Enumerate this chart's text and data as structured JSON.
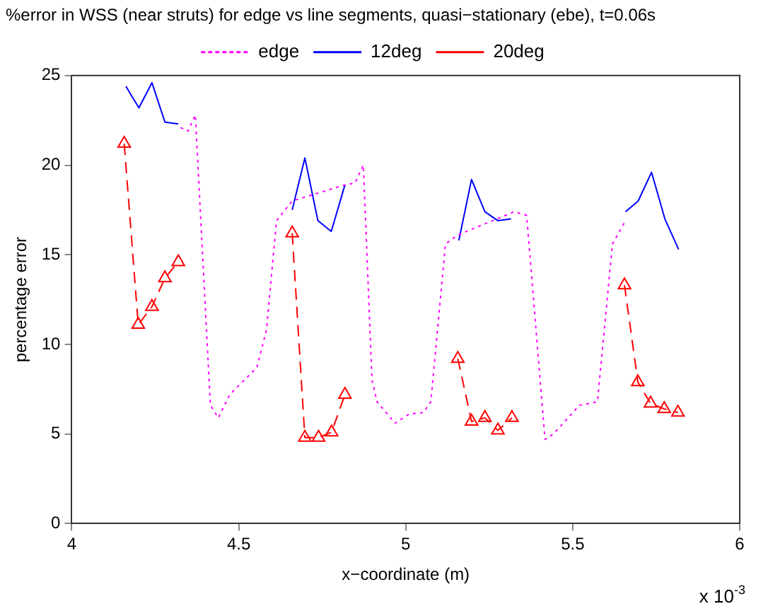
{
  "chart_data": {
    "type": "line",
    "title": "%error in WSS (near struts) for edge vs line segments, quasi−stationary (ebe), t=0.06s",
    "xlabel": "x−coordinate (m)",
    "ylabel": "percentage error",
    "annotations": [
      "x 10$^{-3}$"
    ],
    "xlim": [
      4,
      6
    ],
    "xticks": [
      4,
      4.5,
      5,
      5.5,
      6
    ],
    "ylim": [
      0,
      25
    ],
    "yticks": [
      0,
      5,
      10,
      15,
      20,
      25
    ],
    "grid": false,
    "legend": "top",
    "series": [
      {
        "name": "edge",
        "color": "#ff00ff",
        "line_style": "dotted",
        "marker": "none",
        "x": [
          4.326,
          4.348,
          4.37,
          4.415,
          4.439,
          4.473,
          4.554,
          4.583,
          4.613,
          4.66,
          4.818,
          4.848,
          4.873,
          4.899,
          4.914,
          4.968,
          5.009,
          5.053,
          5.075,
          5.119,
          5.156,
          5.325,
          5.362,
          5.417,
          5.442,
          5.52,
          5.574,
          5.619,
          5.658
        ],
        "values": [
          22.1,
          21.9,
          22.8,
          6.6,
          5.9,
          7.2,
          8.7,
          10.8,
          16.9,
          18.0,
          18.9,
          19.0,
          20.0,
          8.0,
          6.8,
          5.6,
          6.1,
          6.2,
          6.8,
          15.6,
          16.1,
          17.4,
          17.2,
          4.7,
          5.0,
          6.6,
          6.8,
          15.6,
          16.9
        ]
      },
      {
        "name": "12deg",
        "color": "#0000ff",
        "line_style": "solid",
        "marker": "none",
        "x": [
          4.162,
          4.201,
          4.24,
          4.279,
          4.319,
          4.5,
          4.66,
          4.698,
          4.737,
          4.777,
          4.818,
          5.0,
          5.159,
          5.197,
          5.237,
          5.276,
          5.315,
          5.5,
          5.658,
          5.696,
          5.736,
          5.776,
          5.817
        ],
        "values": [
          24.4,
          23.2,
          24.6,
          22.4,
          22.3,
          null,
          17.5,
          20.4,
          16.9,
          16.3,
          18.9,
          null,
          15.8,
          19.2,
          17.4,
          16.9,
          17.0,
          null,
          17.4,
          18.0,
          19.6,
          17.0,
          15.3
        ]
      },
      {
        "name": "20deg",
        "color": "#ff0000",
        "line_style": "dashed",
        "marker": "triangle",
        "x": [
          4.157,
          4.199,
          4.24,
          4.279,
          4.319,
          4.5,
          4.66,
          4.698,
          4.739,
          4.778,
          4.818,
          5.0,
          5.156,
          5.197,
          5.237,
          5.276,
          5.318,
          5.5,
          5.655,
          5.695,
          5.733,
          5.774,
          5.815
        ],
        "values": [
          21.2,
          11.1,
          12.1,
          13.7,
          14.6,
          null,
          16.2,
          4.8,
          4.8,
          5.1,
          7.2,
          null,
          9.2,
          5.7,
          5.9,
          5.2,
          5.9,
          null,
          13.3,
          7.9,
          6.7,
          6.4,
          6.2
        ]
      }
    ]
  }
}
